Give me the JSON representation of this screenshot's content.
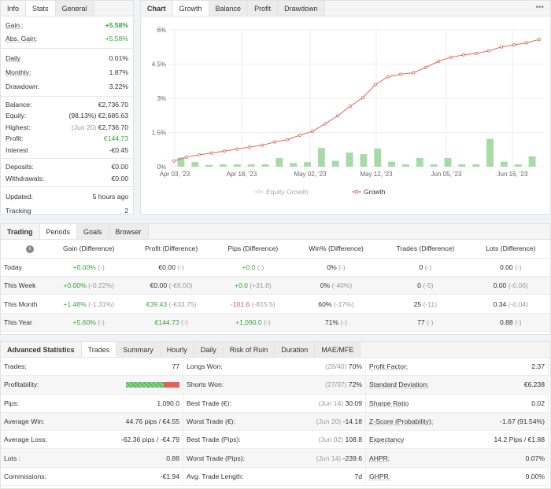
{
  "info": {
    "tabs": [
      "Info",
      "Stats",
      "General"
    ],
    "rows1": [
      {
        "label": "Gain :",
        "value": "+5.58%",
        "cls": "green"
      },
      {
        "label": "Abs. Gain:",
        "value": "+5.58%",
        "cls": "green"
      }
    ],
    "rows2": [
      {
        "label": "Daily",
        "value": "0.01%"
      },
      {
        "label": "Monthly:",
        "value": "1.87%"
      },
      {
        "label": "Drawdown:",
        "value": "3.22%"
      }
    ],
    "balance_label": "Balance:",
    "balance": "€2,736.70",
    "equity_label": "Equity:",
    "equity_pct": "(98.13%)",
    "equity": "€2,685.63",
    "highest_label": "Highest:",
    "highest_date": "(Jun 20)",
    "highest": "€2,736.70",
    "profit_label": "Profit:",
    "profit": "€144.73",
    "interest_label": "Interest",
    "interest": "-€0.45",
    "deposits_label": "Deposits:",
    "deposits": "€0.00",
    "withdrawals_label": "Withdrawals:",
    "withdrawals": "€0.00",
    "updated_label": "Updated:",
    "updated": "5 hours ago",
    "tracking_label": "Tracking",
    "tracking": "2"
  },
  "chart": {
    "tabs": [
      "Chart",
      "Growth",
      "Balance",
      "Profit",
      "Drawdown"
    ],
    "menu": "•••",
    "legend_equity": "Equity Growth",
    "legend_growth": "Growth",
    "yticks": [
      "6%",
      "4.5%",
      "3%",
      "1.5%",
      "0%"
    ],
    "xticks": [
      "Apr 03, '23",
      "Apr 18, '23",
      "May 02, '23",
      "May 12, '23",
      "Jun 05, '23",
      "Jun 16, '23"
    ]
  },
  "chart_data": {
    "type": "line",
    "ylim": [
      0,
      6
    ],
    "series": [
      {
        "name": "Growth",
        "color": "#e0635a",
        "values": [
          0.25,
          0.42,
          0.52,
          0.6,
          0.68,
          0.77,
          0.86,
          0.94,
          1.08,
          1.18,
          1.38,
          1.55,
          1.88,
          2.23,
          2.65,
          3.03,
          3.6,
          3.95,
          4.05,
          4.12,
          4.35,
          4.62,
          4.8,
          4.9,
          4.97,
          5.08,
          5.25,
          5.34,
          5.43,
          5.58
        ]
      },
      {
        "name": "",
        "color": "#a6dba6",
        "values": [
          0.4,
          0.2,
          0.08,
          0.1,
          0.1,
          0.1,
          0.1,
          0.38,
          0.16,
          0.2,
          0.82,
          0.26,
          0.62,
          0.55,
          0.8,
          0.22,
          0.1,
          0.38,
          0.1,
          0.38,
          0.1,
          0.1,
          1.22,
          0.22,
          0.1,
          0.45
        ]
      }
    ]
  },
  "periods": {
    "tabs": [
      "Trading",
      "Periods",
      "Goals",
      "Browser"
    ],
    "info_icon": "i",
    "headers": [
      "Gain (Difference)",
      "Profit (Difference)",
      "Pips (Difference)",
      "Win% (Difference)",
      "Trades (Difference)",
      "Lots (Difference)"
    ],
    "rows": [
      {
        "label": "Today",
        "cells": [
          [
            "+0.00%",
            "(-)",
            "green"
          ],
          [
            "€0.00",
            "(-)",
            ""
          ],
          [
            "+0.0",
            "(-)",
            "green"
          ],
          [
            "0%",
            "(-)",
            ""
          ],
          [
            "0",
            "(-)",
            ""
          ],
          [
            "0.00",
            "(-)",
            ""
          ]
        ]
      },
      {
        "label": "This Week",
        "cells": [
          [
            "+0.00%",
            "(-0.22%)",
            "green"
          ],
          [
            "€0.00",
            "(-€6.00)",
            ""
          ],
          [
            "+0.0",
            "(+31.8)",
            "green"
          ],
          [
            "0%",
            "(-40%)",
            ""
          ],
          [
            "0",
            "(-5)",
            ""
          ],
          [
            "0.00",
            "(-0.06)",
            ""
          ]
        ]
      },
      {
        "label": "This Month",
        "cells": [
          [
            "+1.48%",
            "(-1.31%)",
            "green"
          ],
          [
            "€39.43",
            "(-€33.75)",
            "green"
          ],
          [
            "-101.6",
            "(-815.5)",
            "red"
          ],
          [
            "60%",
            "(-17%)",
            ""
          ],
          [
            "25",
            "(-11)",
            ""
          ],
          [
            "0.34",
            "(-0.04)",
            ""
          ]
        ]
      },
      {
        "label": "This Year",
        "cells": [
          [
            "+5.60%",
            "(-)",
            "green"
          ],
          [
            "€144.73",
            "(-)",
            "green"
          ],
          [
            "+1,090.0",
            "(-)",
            "green"
          ],
          [
            "71%",
            "(-)",
            ""
          ],
          [
            "77",
            "(-)",
            ""
          ],
          [
            "0.88",
            "(-)",
            ""
          ]
        ]
      }
    ]
  },
  "advanced": {
    "tabs": [
      "Advanced Statistics",
      "Trades",
      "Summary",
      "Hourly",
      "Daily",
      "Risk of Ruin",
      "Duration",
      "MAE/MFE"
    ],
    "col1": [
      {
        "label": "Trades:",
        "value": "77"
      },
      {
        "label": "Profitability:",
        "value": "",
        "bar": true
      },
      {
        "label": "Pips:",
        "value": "1,090.0"
      },
      {
        "label": "Average Win:",
        "value": "44.76 pips / €4.55"
      },
      {
        "label": "Average Loss:",
        "value": "-62.36 pips / -€4.79"
      },
      {
        "label": "Lots :",
        "value": "0.88"
      },
      {
        "label": "Commissions:",
        "value": "-€1.94"
      }
    ],
    "col2": [
      {
        "label": "Longs Won:",
        "note": "(28/40)",
        "value": "70%"
      },
      {
        "label": "Shorts Won:",
        "note": "(27/37)",
        "value": "72%"
      },
      {
        "label": "Best Trade (€):",
        "note": "(Jun 14)",
        "value": "30.09"
      },
      {
        "label": "Worst Trade (€):",
        "note": "(Jun 20)",
        "value": "-14.18"
      },
      {
        "label": "Best Trade (Pips):",
        "note": "(Jun 02)",
        "value": "108.8"
      },
      {
        "label": "Worst Trade (Pips):",
        "note": "(Jun 14)",
        "value": "-239.6"
      },
      {
        "label": "Avg. Trade Length:",
        "note": "",
        "value": "7d"
      }
    ],
    "col3": [
      {
        "label": "Profit Factor:",
        "value": "2.37"
      },
      {
        "label": "Standard Deviation:",
        "value": "€6.238"
      },
      {
        "label": "Sharpe Ratio",
        "value": "0.02"
      },
      {
        "label": "Z-Score (Probability):",
        "value": "-1.67 (91.54%)"
      },
      {
        "label": "Expectancy",
        "value": "14.2 Pips / €1.88"
      },
      {
        "label": "AHPR:",
        "value": "0.07%"
      },
      {
        "label": "GHPR:",
        "value": "0.00%"
      }
    ],
    "profitability_win_fraction": 0.71,
    "colors": {
      "win": "#5cb85c",
      "loss": "#e0635a"
    }
  }
}
